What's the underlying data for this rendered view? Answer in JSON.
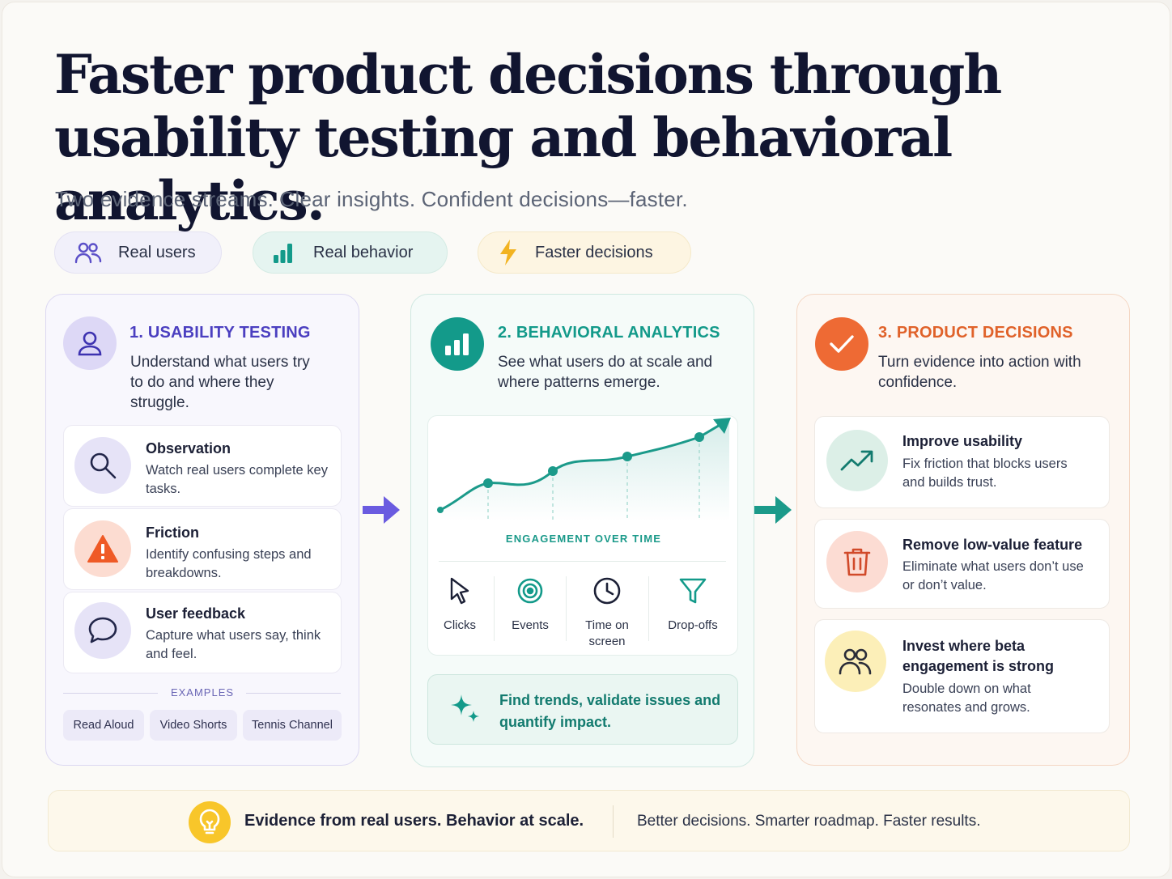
{
  "header": {
    "title": "Faster product decisions through usability testing and behavioral analytics.",
    "subtitle": "Two evidence streams. Clear insights. Confident decisions—faster."
  },
  "pills": [
    {
      "label": "Real users",
      "icon": "users-icon",
      "color": "#5b4fc8"
    },
    {
      "label": "Real behavior",
      "icon": "bar-chart-icon",
      "color": "#139a8a"
    },
    {
      "label": "Faster decisions",
      "icon": "lightning-icon",
      "color": "#f2b320"
    }
  ],
  "usability": {
    "title": "1. USABILITY TESTING",
    "description": "Understand what users try to do and where they struggle.",
    "accent": "#4b3fc0",
    "items": [
      {
        "title": "Observation",
        "description": "Watch real users complete key tasks.",
        "icon": "search-icon"
      },
      {
        "title": "Friction",
        "description": "Identify confusing steps and breakdowns.",
        "icon": "warning-icon"
      },
      {
        "title": "User feedback",
        "description": "Capture what users say, think and feel.",
        "icon": "chat-bubble-icon"
      }
    ],
    "examples_label": "EXAMPLES",
    "examples": [
      "Read Aloud",
      "Video Shorts",
      "Tennis Channel"
    ]
  },
  "analytics": {
    "title": "2. BEHAVIORAL ANALYTICS",
    "description": "See what users do at scale and where patterns emerge.",
    "accent": "#139a8a",
    "chart_label": "ENGAGEMENT OVER TIME",
    "metrics": [
      {
        "label": "Clicks",
        "icon": "cursor-icon"
      },
      {
        "label": "Events",
        "icon": "target-icon"
      },
      {
        "label": "Time on screen",
        "icon": "clock-icon"
      },
      {
        "label": "Drop-offs",
        "icon": "funnel-icon"
      }
    ],
    "trend_text": "Find trends, validate issues and quantify impact."
  },
  "decisions": {
    "title": "3. PRODUCT DECISIONS",
    "description": "Turn evidence into action with confidence.",
    "accent": "#e0622a",
    "items": [
      {
        "title": "Improve usability",
        "description": "Fix friction that blocks users and builds trust.",
        "icon": "trending-up-icon"
      },
      {
        "title": "Remove low-value feature",
        "description": "Eliminate what users don’t use or don’t value.",
        "icon": "trash-icon"
      },
      {
        "title": "Invest where beta engagement is strong",
        "description": "Double down on what resonates and grows.",
        "icon": "users-icon"
      }
    ]
  },
  "footer": {
    "strong": "Evidence from real users. Behavior at scale.",
    "light": "Better decisions. Smarter roadmap. Faster results."
  }
}
